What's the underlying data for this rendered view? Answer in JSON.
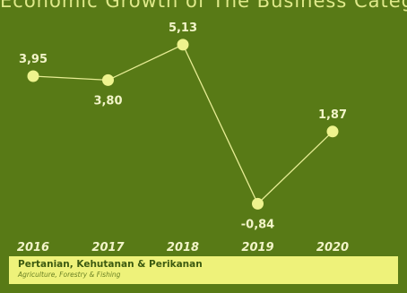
{
  "header": {
    "caption": "Economic Growth of The Business Category"
  },
  "footer": {
    "title": "Pertanian, Kehutanan & Perikanan",
    "subtitle": "Agriculture, Forestry & Fishing"
  },
  "colors": {
    "background": "#587a16",
    "line": "#e6ec94",
    "marker": "#eef38e",
    "label": "#f2f4c8",
    "footer_bg": "#eef27a"
  },
  "chart_data": {
    "type": "line",
    "categories": [
      "2016",
      "2017",
      "2018",
      "2019",
      "2020"
    ],
    "series": [
      {
        "values": [
          3.95,
          3.8,
          5.13,
          -0.84,
          1.87
        ],
        "labels": [
          "3,95",
          "3,80",
          "5,13",
          "-0,84",
          "1,87"
        ]
      }
    ],
    "ylim": [
      -1.6,
      6.0
    ],
    "grid": false,
    "legend": "none"
  }
}
